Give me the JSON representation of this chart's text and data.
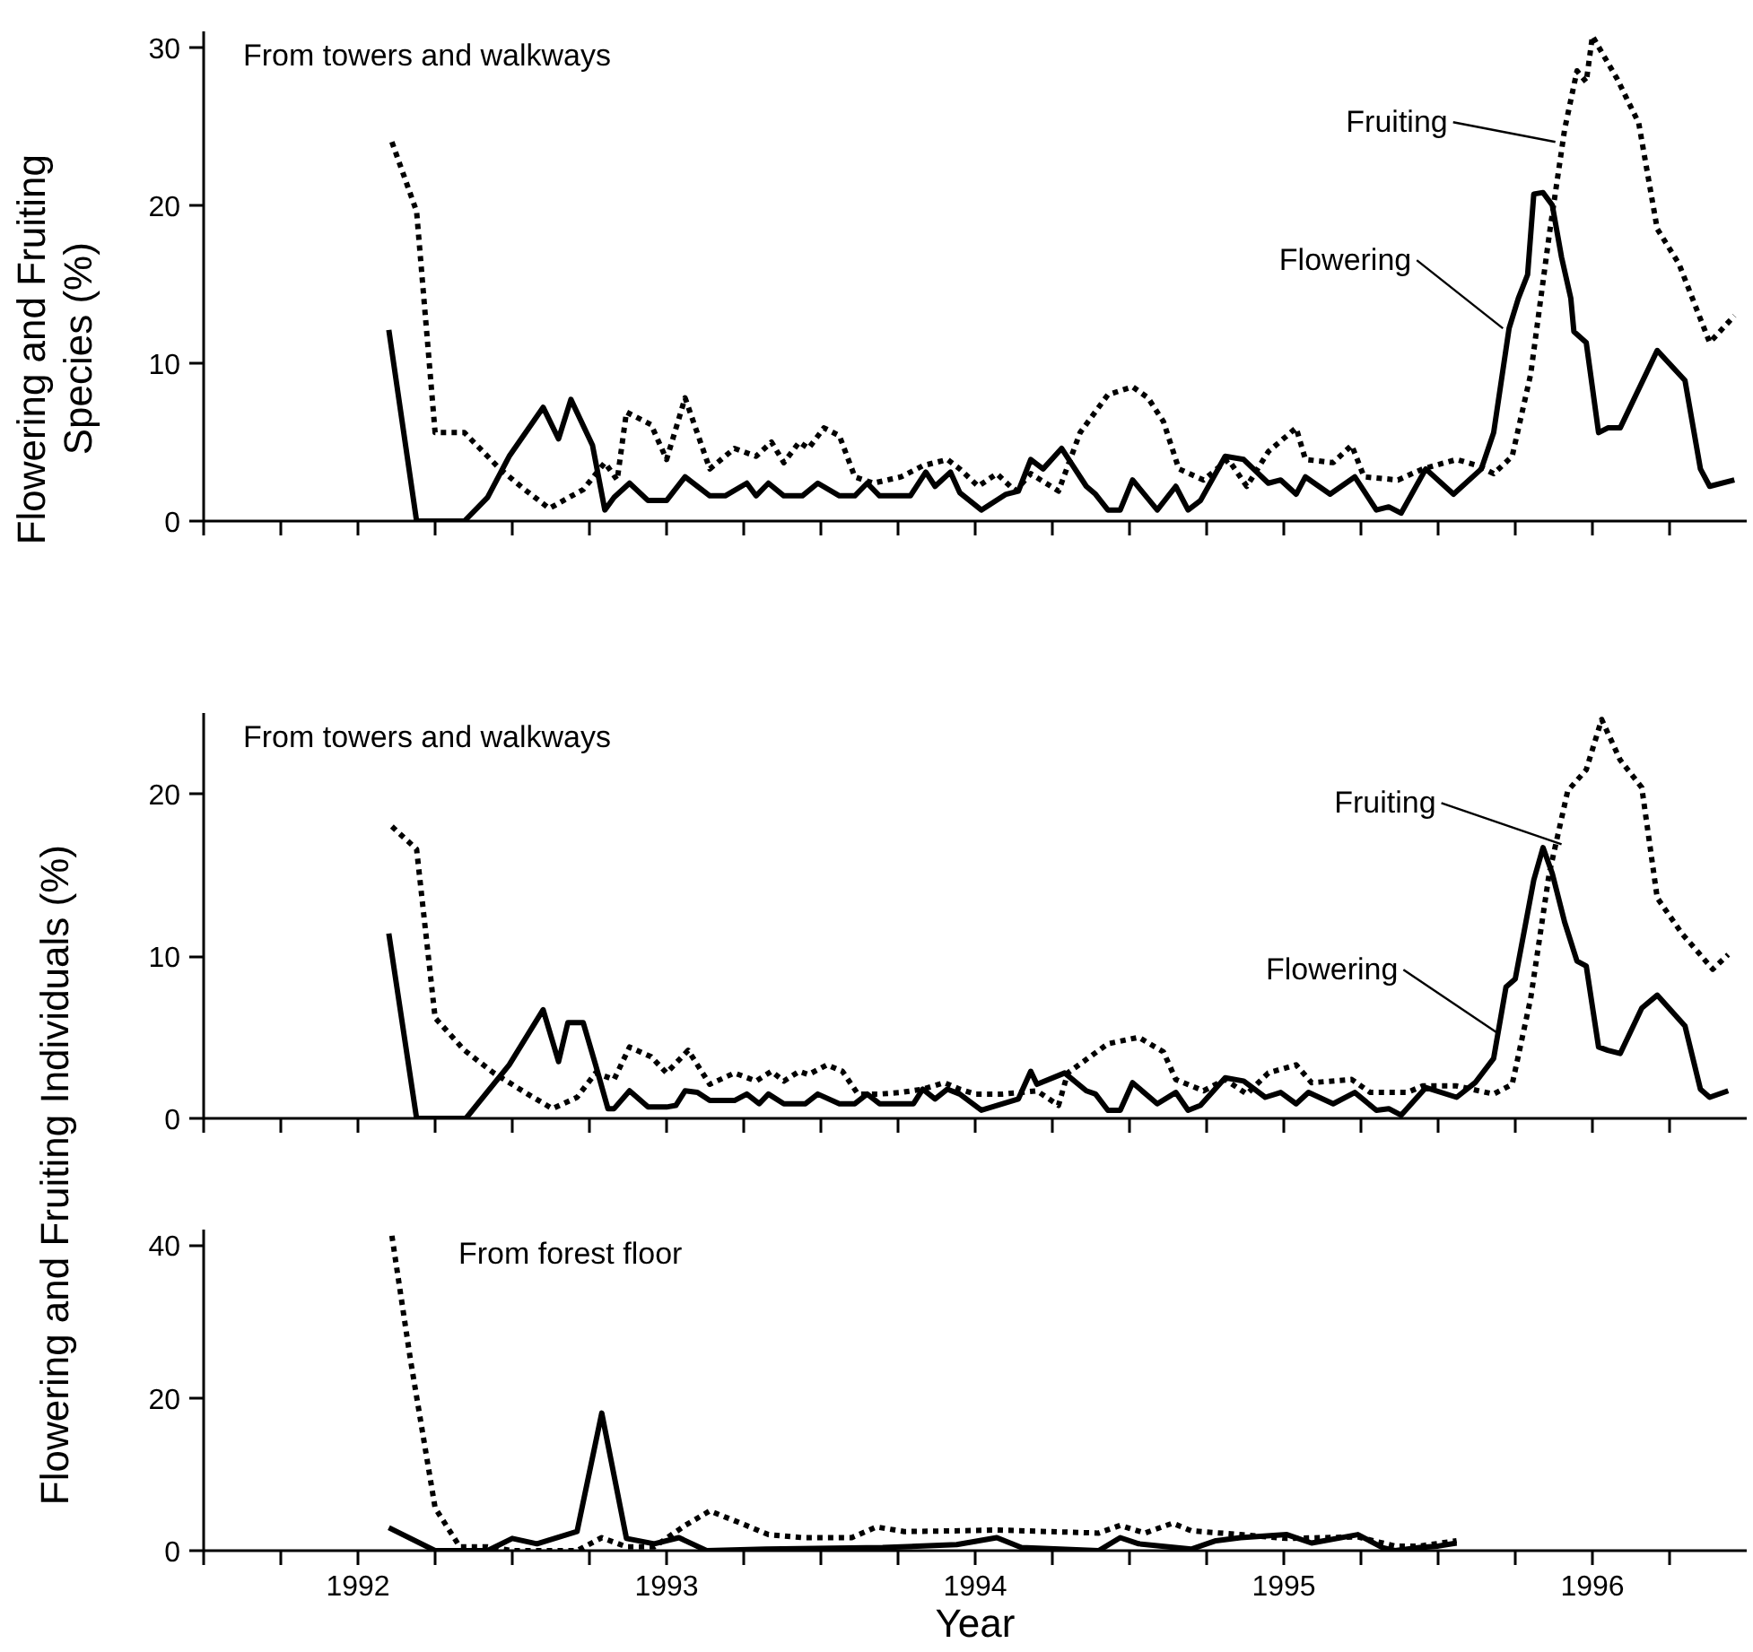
{
  "chart_data": [
    {
      "type": "line",
      "ylabel": "Flowering and Fruiting\nSpecies (%)",
      "xlim": [
        1992,
        1997
      ],
      "ylim": [
        0,
        31
      ],
      "yticks": [
        0,
        10,
        20,
        30
      ],
      "tick_labels": "y",
      "xticks": [
        1992,
        1992.25,
        1992.5,
        1992.75,
        1993,
        1993.25,
        1993.5,
        1993.75,
        1994,
        1994.25,
        1994.5,
        1994.75,
        1995,
        1995.25,
        1995.5,
        1995.75,
        1996,
        1996.25,
        1996.5,
        1996.75
      ],
      "annotations": [
        "From towers and walkways",
        {
          "text": "Fruiting",
          "x": 1996.38,
          "y": 24.0
        },
        {
          "text": "Flowering",
          "x": 1996.21,
          "y": 12.2
        }
      ],
      "series": [
        {
          "color": "#000000",
          "line_style": "solid",
          "x": [
            1992.6,
            1992.69,
            1992.845,
            1992.92,
            1992.99,
            1993.1,
            1993.15,
            1993.19,
            1993.26,
            1993.3,
            1993.33,
            1993.38,
            1993.44,
            1993.5,
            1993.56,
            1993.64,
            1993.69,
            1993.76,
            1993.79,
            1993.83,
            1993.88,
            1993.94,
            1993.99,
            1994.06,
            1994.11,
            1994.15,
            1994.19,
            1994.29,
            1994.34,
            1994.37,
            1994.42,
            1994.45,
            1994.52,
            1994.6,
            1994.64,
            1994.68,
            1994.72,
            1994.78,
            1994.86,
            1994.89,
            1994.93,
            1994.97,
            1995.01,
            1995.09,
            1995.15,
            1995.19,
            1995.23,
            1995.31,
            1995.37,
            1995.45,
            1995.49,
            1995.54,
            1995.57,
            1995.65,
            1995.73,
            1995.8,
            1995.84,
            1995.88,
            1995.96,
            1996.05,
            1996.14,
            1996.18,
            1996.23,
            1996.26,
            1996.29,
            1996.31,
            1996.34,
            1996.37,
            1996.4,
            1996.43,
            1996.44,
            1996.48,
            1996.52,
            1996.55,
            1996.59,
            1996.71,
            1996.8,
            1996.85,
            1996.88,
            1996.96
          ],
          "values": [
            12.1,
            0,
            0,
            1.5,
            4.1,
            7.2,
            5.2,
            7.7,
            4.8,
            0.7,
            1.5,
            2.4,
            1.3,
            1.3,
            2.8,
            1.6,
            1.6,
            2.4,
            1.6,
            2.4,
            1.6,
            1.6,
            2.4,
            1.6,
            1.6,
            2.4,
            1.6,
            1.6,
            3.1,
            2.2,
            3.1,
            1.8,
            0.7,
            1.7,
            1.9,
            3.9,
            3.3,
            4.6,
            2.2,
            1.7,
            0.7,
            0.7,
            2.6,
            0.7,
            2.2,
            0.7,
            1.3,
            4.1,
            3.9,
            2.4,
            2.6,
            1.7,
            2.8,
            1.7,
            2.8,
            0.7,
            0.9,
            0.5,
            3.3,
            1.7,
            3.3,
            5.6,
            12.2,
            14.1,
            15.6,
            20.7,
            20.8,
            20.0,
            16.7,
            14.1,
            12.0,
            11.3,
            5.6,
            5.9,
            5.9,
            10.8,
            8.9,
            3.3,
            2.2,
            2.6
          ]
        },
        {
          "color": "#000000",
          "line_style": "dotted",
          "x": [
            1992.61,
            1992.69,
            1992.75,
            1992.845,
            1992.96,
            1993.04,
            1993.12,
            1993.23,
            1993.3,
            1993.34,
            1993.37,
            1993.45,
            1993.5,
            1993.56,
            1993.64,
            1993.72,
            1993.79,
            1993.84,
            1993.88,
            1993.93,
            1993.96,
            1994.01,
            1994.06,
            1994.11,
            1994.17,
            1994.26,
            1994.33,
            1994.41,
            1994.45,
            1994.51,
            1994.57,
            1994.63,
            1994.68,
            1994.77,
            1994.84,
            1994.93,
            1995.01,
            1995.06,
            1995.11,
            1995.16,
            1995.24,
            1995.32,
            1995.38,
            1995.45,
            1995.54,
            1995.57,
            1995.66,
            1995.72,
            1995.76,
            1995.87,
            1995.95,
            1996.06,
            1996.13,
            1996.18,
            1996.24,
            1996.3,
            1996.36,
            1996.41,
            1996.45,
            1996.48,
            1996.5,
            1996.58,
            1996.65,
            1996.71,
            1996.78,
            1996.88,
            1996.96
          ],
          "values": [
            24.0,
            19.6,
            5.6,
            5.6,
            3.3,
            2.0,
            0.8,
            2.0,
            3.7,
            2.6,
            6.9,
            6.1,
            3.9,
            7.8,
            3.3,
            4.6,
            4.1,
            5.0,
            3.7,
            5.0,
            4.6,
            5.9,
            5.4,
            2.8,
            2.4,
            2.8,
            3.5,
            3.9,
            3.3,
            2.2,
            3.0,
            1.9,
            3.0,
            1.9,
            5.6,
            8.0,
            8.5,
            7.8,
            6.3,
            3.3,
            2.6,
            3.9,
            2.2,
            4.4,
            5.9,
            3.9,
            3.7,
            4.8,
            2.8,
            2.6,
            3.3,
            3.9,
            3.5,
            3.0,
            4.1,
            9.3,
            18.1,
            24.8,
            28.5,
            27.8,
            30.7,
            28.0,
            25.2,
            18.5,
            16.3,
            11.3,
            13.0
          ]
        }
      ]
    },
    {
      "type": "line",
      "ylabel": "Flowering and Fruiting Individuals (%)",
      "xlim": [
        1992,
        1997
      ],
      "ylim": [
        0,
        25
      ],
      "yticks": [
        0,
        10,
        20
      ],
      "tick_labels": "y",
      "xticks": [
        1992,
        1992.25,
        1992.5,
        1992.75,
        1993,
        1993.25,
        1993.5,
        1993.75,
        1994,
        1994.25,
        1994.5,
        1994.75,
        1995,
        1995.25,
        1995.5,
        1995.75,
        1996,
        1996.25,
        1996.5,
        1996.75
      ],
      "annotations": [
        "From towers and walkways",
        {
          "text": "Fruiting",
          "x": 1996.4,
          "y": 16.9
        },
        {
          "text": "Flowering",
          "x": 1996.19,
          "y": 5.3
        }
      ],
      "series": [
        {
          "color": "#000000",
          "line_style": "solid",
          "x": [
            1992.6,
            1992.69,
            1992.85,
            1992.99,
            1993.1,
            1993.15,
            1993.18,
            1993.23,
            1993.27,
            1993.31,
            1993.33,
            1993.38,
            1993.44,
            1993.5,
            1993.53,
            1993.56,
            1993.6,
            1993.64,
            1993.72,
            1993.76,
            1993.8,
            1993.83,
            1993.88,
            1993.95,
            1993.99,
            1994.06,
            1994.11,
            1994.15,
            1994.19,
            1994.3,
            1994.33,
            1994.37,
            1994.41,
            1994.45,
            1994.52,
            1994.64,
            1994.68,
            1994.7,
            1994.79,
            1994.86,
            1994.89,
            1994.93,
            1994.97,
            1995.01,
            1995.09,
            1995.15,
            1995.19,
            1995.23,
            1995.31,
            1995.37,
            1995.44,
            1995.49,
            1995.54,
            1995.58,
            1995.66,
            1995.73,
            1995.8,
            1995.84,
            1995.88,
            1995.96,
            1996.06,
            1996.12,
            1996.18,
            1996.22,
            1996.25,
            1996.31,
            1996.34,
            1996.37,
            1996.41,
            1996.45,
            1996.48,
            1996.52,
            1996.55,
            1996.59,
            1996.66,
            1996.71,
            1996.8,
            1996.85,
            1996.88,
            1996.94
          ],
          "values": [
            11.4,
            0,
            0,
            3.3,
            6.7,
            3.5,
            5.9,
            5.9,
            3.3,
            0.6,
            0.6,
            1.7,
            0.7,
            0.7,
            0.8,
            1.7,
            1.6,
            1.1,
            1.1,
            1.5,
            0.9,
            1.5,
            0.9,
            0.9,
            1.5,
            0.9,
            0.9,
            1.5,
            0.9,
            0.9,
            1.8,
            1.2,
            1.8,
            1.5,
            0.5,
            1.2,
            2.9,
            2.1,
            2.8,
            1.7,
            1.5,
            0.5,
            0.5,
            2.2,
            0.9,
            1.6,
            0.5,
            0.8,
            2.5,
            2.3,
            1.3,
            1.6,
            0.9,
            1.6,
            0.9,
            1.6,
            0.5,
            0.6,
            0.2,
            1.9,
            1.3,
            2.2,
            3.7,
            8.1,
            8.6,
            14.7,
            16.7,
            15.1,
            12.1,
            9.7,
            9.4,
            4.4,
            4.2,
            4.0,
            6.8,
            7.6,
            5.7,
            1.8,
            1.3,
            1.7
          ]
        },
        {
          "color": "#000000",
          "line_style": "dotted",
          "x": [
            1992.61,
            1992.69,
            1992.75,
            1992.845,
            1992.94,
            1993.05,
            1993.13,
            1993.21,
            1993.27,
            1993.33,
            1993.38,
            1993.45,
            1993.5,
            1993.57,
            1993.64,
            1993.72,
            1993.79,
            1993.84,
            1993.88,
            1993.93,
            1993.96,
            1994.02,
            1994.07,
            1994.12,
            1994.19,
            1994.26,
            1994.33,
            1994.4,
            1994.45,
            1994.5,
            1994.59,
            1994.65,
            1994.7,
            1994.77,
            1994.8,
            1994.93,
            1995.03,
            1995.11,
            1995.15,
            1995.24,
            1995.31,
            1995.38,
            1995.45,
            1995.54,
            1995.59,
            1995.72,
            1995.78,
            1995.9,
            1995.95,
            1996.06,
            1996.18,
            1996.24,
            1996.3,
            1996.36,
            1996.42,
            1996.48,
            1996.53,
            1996.59,
            1996.66,
            1996.71,
            1996.79,
            1996.89,
            1996.94
          ],
          "values": [
            18.0,
            16.6,
            6.2,
            4.2,
            2.8,
            1.5,
            0.6,
            1.3,
            2.8,
            2.4,
            4.4,
            3.8,
            2.8,
            4.2,
            2.1,
            2.8,
            2.3,
            2.9,
            2.3,
            2.9,
            2.7,
            3.3,
            2.9,
            1.5,
            1.5,
            1.6,
            1.8,
            2.2,
            1.8,
            1.5,
            1.5,
            1.6,
            1.7,
            0.8,
            2.8,
            4.6,
            5.0,
            4.1,
            2.4,
            1.7,
            2.4,
            1.5,
            2.8,
            3.3,
            2.2,
            2.4,
            1.6,
            1.6,
            2.0,
            2.0,
            1.5,
            2.1,
            7.4,
            15.1,
            20.2,
            21.5,
            24.6,
            22.1,
            20.4,
            13.6,
            11.4,
            9.2,
            10.1
          ]
        }
      ]
    },
    {
      "type": "line",
      "xlabel": "Year",
      "xlim": [
        1992,
        1997
      ],
      "ylim": [
        0,
        42
      ],
      "yticks": [
        0,
        20,
        40
      ],
      "xticks": [
        {
          "value": 1992,
          "label": null
        },
        {
          "value": 1992.25,
          "label": null
        },
        {
          "value": 1992.5,
          "label": "1992"
        },
        {
          "value": 1992.75,
          "label": null
        },
        {
          "value": 1993,
          "label": null
        },
        {
          "value": 1993.25,
          "label": null
        },
        {
          "value": 1993.5,
          "label": "1993"
        },
        {
          "value": 1993.75,
          "label": null
        },
        {
          "value": 1994,
          "label": null
        },
        {
          "value": 1994.25,
          "label": null
        },
        {
          "value": 1994.5,
          "label": "1994"
        },
        {
          "value": 1994.75,
          "label": null
        },
        {
          "value": 1995,
          "label": null
        },
        {
          "value": 1995.25,
          "label": null
        },
        {
          "value": 1995.5,
          "label": "1995"
        },
        {
          "value": 1995.75,
          "label": null
        },
        {
          "value": 1996,
          "label": null
        },
        {
          "value": 1996.25,
          "label": null
        },
        {
          "value": 1996.5,
          "label": "1996"
        },
        {
          "value": 1996.75,
          "label": null
        }
      ],
      "annotations": [
        "From forest floor"
      ],
      "series": [
        {
          "color": "#000000",
          "line_style": "solid",
          "x": [
            1992.6,
            1992.75,
            1992.92,
            1993.0,
            1993.08,
            1993.21,
            1993.29,
            1993.37,
            1993.46,
            1993.54,
            1993.63,
            1993.82,
            1994.2,
            1994.44,
            1994.57,
            1994.65,
            1994.9,
            1994.97,
            1995.03,
            1995.2,
            1995.28,
            1995.36,
            1995.51,
            1995.59,
            1995.74,
            1995.82,
            1995.86,
            1995.94,
            1996.0,
            1996.06
          ],
          "values": [
            3.0,
            0,
            0,
            1.6,
            0.9,
            2.5,
            18.0,
            1.6,
            0.9,
            1.7,
            0,
            0.2,
            0.4,
            0.8,
            1.7,
            0.4,
            0,
            1.7,
            0.9,
            0.2,
            1.3,
            1.7,
            2.1,
            1.0,
            2.1,
            0.4,
            0,
            0.4,
            0.6,
            1.0
          ]
        },
        {
          "color": "#000000",
          "line_style": "dotted",
          "x": [
            1992.61,
            1992.67,
            1992.75,
            1992.83,
            1992.92,
            1993.0,
            1993.21,
            1993.29,
            1993.37,
            1993.46,
            1993.56,
            1993.64,
            1993.74,
            1993.83,
            1993.94,
            1994.1,
            1994.18,
            1994.27,
            1994.45,
            1994.57,
            1994.9,
            1994.97,
            1995.05,
            1995.14,
            1995.2,
            1995.36,
            1995.51,
            1995.74,
            1995.86,
            1995.94,
            1996.01,
            1996.06
          ],
          "values": [
            41.2,
            25.0,
            5.6,
            0.5,
            0.5,
            0,
            0,
            1.7,
            0.5,
            0.5,
            3.3,
            5.2,
            3.6,
            2.1,
            1.7,
            1.7,
            3.1,
            2.5,
            2.6,
            2.7,
            2.3,
            3.3,
            2.3,
            3.6,
            2.6,
            2.1,
            1.6,
            1.8,
            0.6,
            0.6,
            1.0,
            1.3
          ]
        }
      ]
    }
  ]
}
